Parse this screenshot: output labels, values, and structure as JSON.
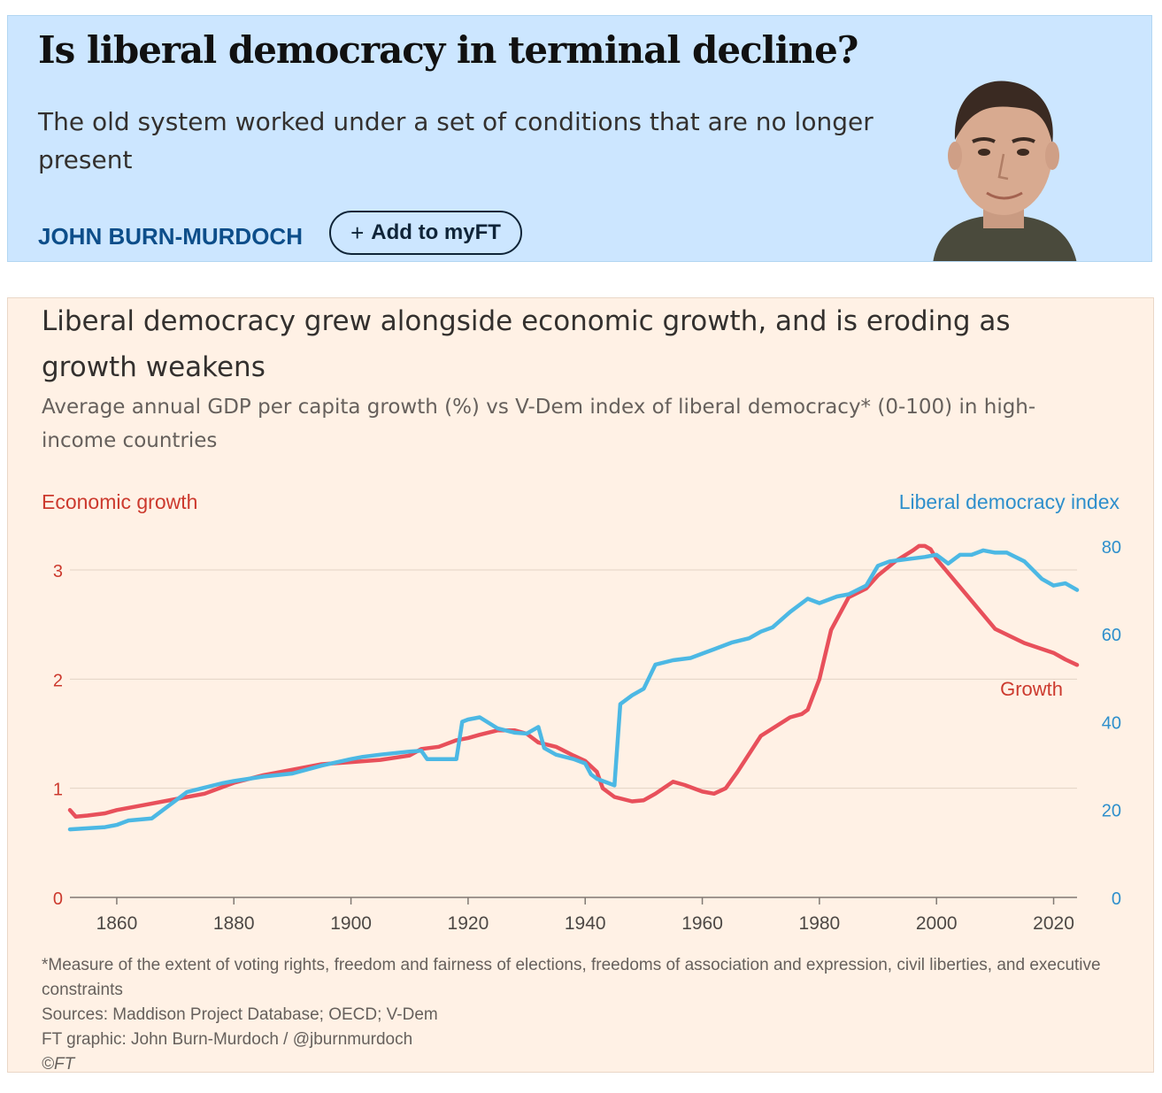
{
  "article": {
    "headline": "Is liberal democracy in terminal decline?",
    "standfirst": "The old system worked under a set of conditions that are no longer present",
    "author": "JOHN BURN-MURDOCH",
    "add_button_plus": "+",
    "add_button_label": "Add to myFT"
  },
  "footer": {
    "note": "*Measure of the extent of voting rights, freedom and fairness of elections, freedoms of association and expression, civil liberties, and executive constraints",
    "sources": "Sources: Maddison Project Database; OECD; V-Dem",
    "credit": "FT graphic: John Burn-Murdoch / @jburnmurdoch",
    "copyright": "©FT"
  },
  "colors": {
    "growth": "#e8505b",
    "democracy": "#4cb8e4",
    "growth_text": "#cc3a2e",
    "democracy_text": "#2e8fcc"
  },
  "chart_data": {
    "type": "line",
    "title": "Liberal democracy grew alongside economic growth, and is eroding as growth weakens",
    "subtitle": "Average annual GDP per capita growth (%) vs V-Dem index of liberal democracy* (0-100) in high-income countries",
    "left_axis_label": "Economic growth",
    "right_axis_label": "Liberal democracy index",
    "series_label": "Growth",
    "xlim": [
      1852,
      2024
    ],
    "ylim_left": [
      0,
      3.3
    ],
    "ylim_right": [
      0,
      82
    ],
    "x_ticks": [
      1860,
      1880,
      1900,
      1920,
      1940,
      1960,
      1980,
      2000,
      2020
    ],
    "y_left_ticks": [
      0,
      1,
      2,
      3
    ],
    "y_right_ticks": [
      0,
      20,
      40,
      60,
      80
    ],
    "series": [
      {
        "name": "Economic growth",
        "axis": "left",
        "unit": "%",
        "x": [
          1852,
          1853,
          1855,
          1858,
          1860,
          1865,
          1870,
          1875,
          1880,
          1885,
          1890,
          1893,
          1895,
          1900,
          1905,
          1910,
          1912,
          1915,
          1918,
          1920,
          1922,
          1925,
          1928,
          1930,
          1932,
          1935,
          1938,
          1940,
          1942,
          1943,
          1945,
          1948,
          1950,
          1952,
          1955,
          1957,
          1960,
          1962,
          1964,
          1966,
          1970,
          1975,
          1977,
          1978,
          1980,
          1982,
          1985,
          1988,
          1990,
          1993,
          1996,
          1997,
          1998,
          1999,
          2000,
          2005,
          2010,
          2015,
          2020,
          2022,
          2024
        ],
        "values": [
          0.8,
          0.74,
          0.75,
          0.77,
          0.8,
          0.85,
          0.9,
          0.95,
          1.05,
          1.12,
          1.17,
          1.2,
          1.22,
          1.24,
          1.26,
          1.3,
          1.36,
          1.38,
          1.44,
          1.46,
          1.49,
          1.53,
          1.53,
          1.5,
          1.42,
          1.38,
          1.3,
          1.25,
          1.15,
          1.0,
          0.92,
          0.88,
          0.89,
          0.95,
          1.06,
          1.03,
          0.97,
          0.95,
          1.0,
          1.15,
          1.48,
          1.65,
          1.68,
          1.72,
          2.0,
          2.45,
          2.75,
          2.83,
          2.95,
          3.08,
          3.18,
          3.22,
          3.22,
          3.19,
          3.1,
          2.78,
          2.46,
          2.33,
          2.24,
          2.18,
          2.13
        ]
      },
      {
        "name": "Liberal democracy index",
        "axis": "right",
        "unit": "index 0-100",
        "x": [
          1852,
          1858,
          1860,
          1862,
          1866,
          1868,
          1870,
          1872,
          1875,
          1878,
          1880,
          1885,
          1890,
          1895,
          1900,
          1902,
          1905,
          1910,
          1912,
          1913,
          1915,
          1918,
          1919,
          1920,
          1922,
          1925,
          1928,
          1930,
          1932,
          1933,
          1935,
          1938,
          1940,
          1941,
          1942,
          1945,
          1946,
          1948,
          1950,
          1952,
          1955,
          1958,
          1960,
          1962,
          1965,
          1968,
          1970,
          1972,
          1975,
          1978,
          1980,
          1983,
          1985,
          1988,
          1990,
          1992,
          1995,
          1998,
          2000,
          2002,
          2004,
          2006,
          2008,
          2010,
          2012,
          2015,
          2018,
          2020,
          2022,
          2024
        ],
        "values": [
          15.5,
          16,
          16.5,
          17.5,
          18,
          20,
          22,
          24,
          25,
          26,
          26.5,
          27.5,
          28.2,
          30,
          31.5,
          32,
          32.5,
          33.2,
          33.4,
          31.5,
          31.5,
          31.5,
          40,
          40.5,
          41,
          38.5,
          37.5,
          37.3,
          38.8,
          34,
          32.5,
          31.5,
          30.5,
          28,
          27,
          25.5,
          44,
          46,
          47.5,
          53,
          54,
          54.5,
          55.5,
          56.5,
          58,
          59,
          60.5,
          61.5,
          65,
          68,
          67,
          68.5,
          69,
          71,
          75.5,
          76.5,
          77,
          77.5,
          78,
          76,
          78,
          78,
          79,
          78.5,
          78.5,
          76.5,
          72.5,
          71,
          71.5,
          70
        ]
      }
    ]
  }
}
